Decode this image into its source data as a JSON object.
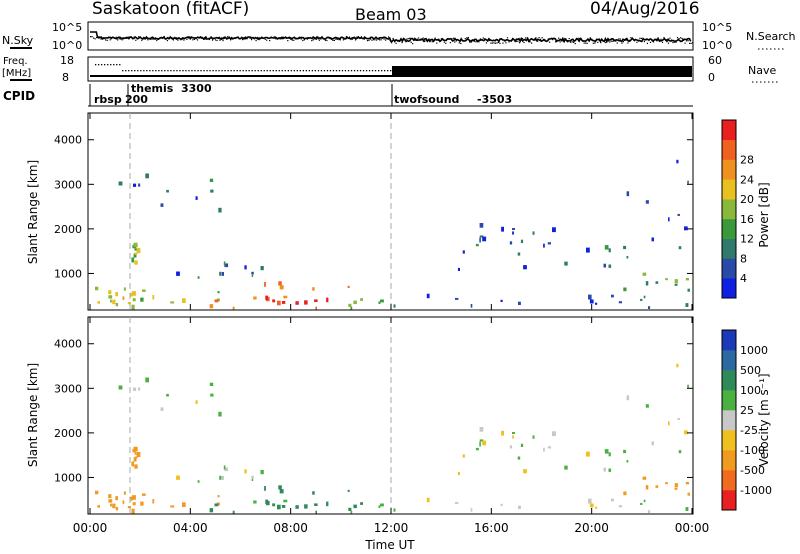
{
  "header": {
    "station": "Saskatoon (fitACF)",
    "beam": "Beam 03",
    "date": "04/Aug/2016"
  },
  "summary": {
    "nsky_label": "N.Sky",
    "nsky_ticks": [
      "10^5",
      "10^0"
    ],
    "nsearch_label": "N.Search",
    "nsearch_ticks": [
      "10^5",
      "10^0"
    ],
    "freq_label_line1": "Freq.",
    "freq_label_line2": "[MHz]",
    "freq_ticks": [
      "18",
      "8"
    ],
    "nave_label": "Nave",
    "nave_ticks": [
      "60",
      "0"
    ],
    "cpid_label": "CPID",
    "cpid_segments": [
      {
        "name": "rbsp",
        "id": "200",
        "start_hour": 0
      },
      {
        "name": "themis",
        "id": "3300",
        "start_hour": 1.0
      },
      {
        "name": "twofsound",
        "id": "-3503",
        "start_hour": 12.0
      }
    ]
  },
  "axes": {
    "xlabel": "Time UT",
    "xticks": [
      "00:00",
      "04:00",
      "08:00",
      "12:00",
      "16:00",
      "20:00",
      "00:00"
    ],
    "ylabel": "Slant Range [km]",
    "yticks": [
      "1000",
      "2000",
      "3000",
      "4000"
    ]
  },
  "power_colorbar": {
    "label": "Power [dB]",
    "ticks": [
      "4",
      "8",
      "12",
      "16",
      "20",
      "24",
      "28"
    ],
    "colors": [
      "#1020e0",
      "#2a4aa8",
      "#2f7a6a",
      "#3a9a3a",
      "#8ab83a",
      "#e8c020",
      "#f09020",
      "#f06020",
      "#e82020"
    ]
  },
  "velocity_colorbar": {
    "label": "Velocity [m s⁻¹]",
    "ticks": [
      "1000",
      "500",
      "100",
      "25",
      "-25",
      "-100",
      "-500",
      "-1000"
    ],
    "colors": [
      "#1a3ab8",
      "#2a6aa0",
      "#2f8a5a",
      "#4ab040",
      "#c8c8c8",
      "#f0c020",
      "#f09a20",
      "#f06a20",
      "#e82020"
    ]
  },
  "chart_data": {
    "type": "heatmap",
    "title": "Saskatoon (fitACF)  Beam 03  04/Aug/2016",
    "xlabel": "Time UT",
    "ylabel": "Slant Range [km]",
    "xlim_hours": [
      0,
      24
    ],
    "ylim_km": [
      180,
      4600
    ],
    "panels": [
      "Power [dB]",
      "Velocity [m s⁻¹]"
    ],
    "echo_regions": [
      {
        "t0": 0.2,
        "t1": 1.8,
        "r0": 220,
        "r1": 700,
        "power": 18,
        "velocity": -300
      },
      {
        "t0": 1.0,
        "t1": 5.5,
        "r0": 350,
        "r1": 650,
        "power": 16,
        "velocity": -150
      },
      {
        "t0": 0.8,
        "t1": 5.3,
        "r0": 2400,
        "r1": 3200,
        "power": 6,
        "velocity": 20
      },
      {
        "t0": 1.6,
        "t1": 2.0,
        "r0": 1200,
        "r1": 1700,
        "power": 14,
        "velocity": -200
      },
      {
        "t0": 2.5,
        "t1": 7.0,
        "r0": 900,
        "r1": 1300,
        "power": 7,
        "velocity": 10
      },
      {
        "t0": 4.5,
        "t1": 10.5,
        "r0": 200,
        "r1": 900,
        "power": 22,
        "velocity": 120
      },
      {
        "t0": 6.5,
        "t1": 9.5,
        "r0": 200,
        "r1": 500,
        "power": 28,
        "velocity": 150
      },
      {
        "t0": 10.0,
        "t1": 12.5,
        "r0": 200,
        "r1": 450,
        "power": 12,
        "velocity": 80
      },
      {
        "t0": 13.0,
        "t1": 24.0,
        "r0": 200,
        "r1": 500,
        "power": 5,
        "velocity": 0
      },
      {
        "t0": 14.0,
        "t1": 21.5,
        "r0": 1050,
        "r1": 1750,
        "power": 6,
        "velocity": 15
      },
      {
        "t0": 15.5,
        "t1": 18.5,
        "r0": 1650,
        "r1": 2100,
        "power": 5,
        "velocity": 10
      },
      {
        "t0": 21.0,
        "t1": 24.0,
        "r0": 600,
        "r1": 1000,
        "power": 12,
        "velocity": -250
      },
      {
        "t0": 20.5,
        "t1": 24.0,
        "r0": 1500,
        "r1": 3600,
        "power": 6,
        "velocity": 20
      }
    ]
  }
}
